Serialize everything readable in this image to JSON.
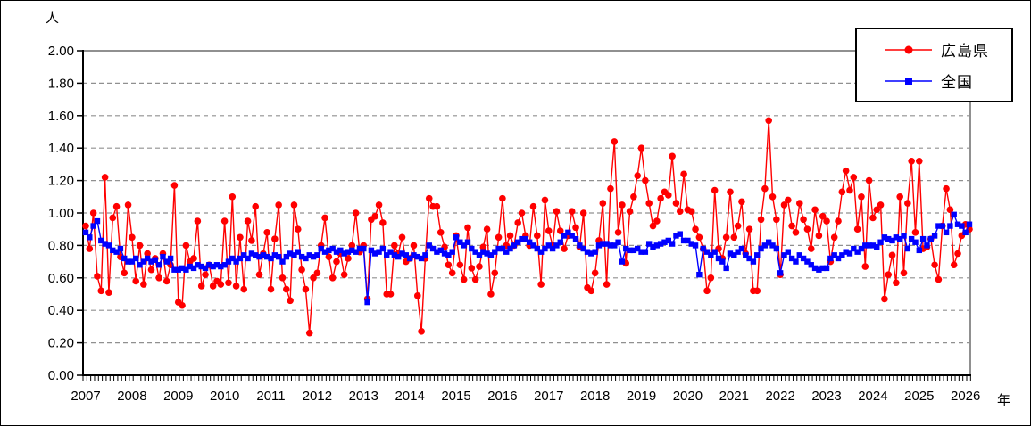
{
  "chart_data": {
    "type": "line",
    "title": "",
    "grid": "horizontal-dashed",
    "legend_position": "top-right",
    "start": "2007-01",
    "end": "2026-02",
    "points_per_year": 12,
    "y_axis": {
      "label": "人",
      "min": 0.0,
      "max": 2.0,
      "tick_step": 0.2,
      "tick_labels": [
        "0.00",
        "0.20",
        "0.40",
        "0.60",
        "0.80",
        "1.00",
        "1.20",
        "1.40",
        "1.60",
        "1.80",
        "2.00"
      ]
    },
    "x_axis": {
      "label": "年",
      "years": [
        2007,
        2008,
        2009,
        2010,
        2011,
        2012,
        2013,
        2014,
        2015,
        2016,
        2017,
        2018,
        2019,
        2020,
        2021,
        2022,
        2023,
        2024,
        2025,
        2026
      ]
    },
    "series": [
      {
        "name": "広島県",
        "color": "#ff0000",
        "marker": "circle",
        "values": [
          0.92,
          0.78,
          1.0,
          0.61,
          0.52,
          1.22,
          0.51,
          0.97,
          1.04,
          0.73,
          0.63,
          1.05,
          0.85,
          0.58,
          0.8,
          0.56,
          0.75,
          0.65,
          0.72,
          0.6,
          0.75,
          0.58,
          0.68,
          1.17,
          0.45,
          0.43,
          0.8,
          0.7,
          0.72,
          0.95,
          0.55,
          0.62,
          0.68,
          0.55,
          0.58,
          0.56,
          0.95,
          0.57,
          1.1,
          0.55,
          0.85,
          0.53,
          0.95,
          0.83,
          1.04,
          0.62,
          0.75,
          0.88,
          0.53,
          0.84,
          1.05,
          0.6,
          0.53,
          0.46,
          1.05,
          0.9,
          0.65,
          0.53,
          0.26,
          0.6,
          0.63,
          0.8,
          0.97,
          0.73,
          0.6,
          0.7,
          0.75,
          0.62,
          0.72,
          0.8,
          1.0,
          0.76,
          0.8,
          0.47,
          0.96,
          0.98,
          1.05,
          0.94,
          0.5,
          0.5,
          0.8,
          0.75,
          0.85,
          0.7,
          0.72,
          0.8,
          0.49,
          0.27,
          0.72,
          1.09,
          1.04,
          1.04,
          0.88,
          0.79,
          0.68,
          0.63,
          0.86,
          0.68,
          0.59,
          0.91,
          0.66,
          0.59,
          0.67,
          0.79,
          0.9,
          0.5,
          0.63,
          0.85,
          1.09,
          0.8,
          0.86,
          0.8,
          0.94,
          1.0,
          0.86,
          0.8,
          1.04,
          0.86,
          0.56,
          1.08,
          0.89,
          0.8,
          1.01,
          0.89,
          0.78,
          0.86,
          1.01,
          0.91,
          0.79,
          1.0,
          0.54,
          0.52,
          0.63,
          0.83,
          1.06,
          0.56,
          1.15,
          1.44,
          0.88,
          1.05,
          0.69,
          1.01,
          1.1,
          1.23,
          1.4,
          1.2,
          1.06,
          0.92,
          0.95,
          1.09,
          1.13,
          1.11,
          1.35,
          1.06,
          1.01,
          1.24,
          1.02,
          1.01,
          0.9,
          0.85,
          0.78,
          0.52,
          0.6,
          1.14,
          0.78,
          0.72,
          0.85,
          1.13,
          0.85,
          0.92,
          1.07,
          0.75,
          0.9,
          0.52,
          0.52,
          0.96,
          1.15,
          1.57,
          1.1,
          0.96,
          0.62,
          1.05,
          1.08,
          0.92,
          0.88,
          1.06,
          0.96,
          0.9,
          0.78,
          1.02,
          0.86,
          0.98,
          0.95,
          0.7,
          0.85,
          0.95,
          1.13,
          1.26,
          1.14,
          1.22,
          0.9,
          1.1,
          0.67,
          1.2,
          0.97,
          1.02,
          1.05,
          0.47,
          0.62,
          0.74,
          0.57,
          1.1,
          0.63,
          1.06,
          1.32,
          0.88,
          1.32,
          0.78,
          0.79,
          0.84,
          0.68,
          0.59,
          0.92,
          1.15,
          1.02,
          0.68,
          0.75,
          0.86,
          0.93,
          0.9
        ]
      },
      {
        "name": "全国",
        "color": "#0000ff",
        "marker": "square",
        "values": [
          0.88,
          0.85,
          0.92,
          0.95,
          0.83,
          0.81,
          0.8,
          0.77,
          0.76,
          0.78,
          0.72,
          0.7,
          0.7,
          0.72,
          0.68,
          0.7,
          0.72,
          0.7,
          0.71,
          0.68,
          0.73,
          0.7,
          0.72,
          0.65,
          0.65,
          0.66,
          0.65,
          0.67,
          0.66,
          0.68,
          0.67,
          0.66,
          0.68,
          0.67,
          0.68,
          0.67,
          0.68,
          0.7,
          0.72,
          0.7,
          0.72,
          0.74,
          0.72,
          0.75,
          0.74,
          0.73,
          0.74,
          0.73,
          0.72,
          0.74,
          0.73,
          0.7,
          0.73,
          0.75,
          0.74,
          0.76,
          0.73,
          0.72,
          0.74,
          0.73,
          0.74,
          0.78,
          0.76,
          0.77,
          0.78,
          0.76,
          0.77,
          0.75,
          0.76,
          0.77,
          0.76,
          0.78,
          0.78,
          0.45,
          0.77,
          0.75,
          0.76,
          0.78,
          0.74,
          0.76,
          0.74,
          0.73,
          0.75,
          0.74,
          0.72,
          0.74,
          0.73,
          0.72,
          0.74,
          0.8,
          0.78,
          0.76,
          0.77,
          0.75,
          0.74,
          0.76,
          0.85,
          0.82,
          0.8,
          0.82,
          0.78,
          0.76,
          0.74,
          0.76,
          0.75,
          0.74,
          0.76,
          0.78,
          0.78,
          0.76,
          0.78,
          0.8,
          0.82,
          0.84,
          0.84,
          0.82,
          0.8,
          0.78,
          0.76,
          0.78,
          0.8,
          0.78,
          0.8,
          0.82,
          0.86,
          0.88,
          0.86,
          0.84,
          0.8,
          0.78,
          0.76,
          0.75,
          0.76,
          0.8,
          0.81,
          0.81,
          0.8,
          0.8,
          0.82,
          0.7,
          0.78,
          0.77,
          0.77,
          0.78,
          0.76,
          0.76,
          0.81,
          0.79,
          0.8,
          0.81,
          0.82,
          0.83,
          0.81,
          0.86,
          0.87,
          0.83,
          0.83,
          0.81,
          0.8,
          0.62,
          0.78,
          0.76,
          0.74,
          0.76,
          0.72,
          0.7,
          0.66,
          0.75,
          0.74,
          0.76,
          0.78,
          0.74,
          0.72,
          0.7,
          0.74,
          0.78,
          0.8,
          0.82,
          0.8,
          0.78,
          0.63,
          0.74,
          0.76,
          0.72,
          0.7,
          0.74,
          0.72,
          0.7,
          0.68,
          0.66,
          0.65,
          0.66,
          0.66,
          0.72,
          0.74,
          0.72,
          0.74,
          0.76,
          0.75,
          0.78,
          0.76,
          0.78,
          0.8,
          0.8,
          0.8,
          0.79,
          0.82,
          0.85,
          0.84,
          0.83,
          0.85,
          0.84,
          0.86,
          0.78,
          0.84,
          0.82,
          0.77,
          0.84,
          0.8,
          0.84,
          0.86,
          0.92,
          0.92,
          0.88,
          0.92,
          0.99,
          0.93,
          0.92,
          0.88,
          0.93
        ]
      }
    ],
    "style": {
      "grid_color": "#909090",
      "frame_color": "#909090",
      "axis_color": "#000000",
      "background": "#ffffff"
    }
  },
  "legend": {
    "items": [
      {
        "label": "広島県",
        "color": "#ff0000",
        "marker": "circle"
      },
      {
        "label": "全国",
        "color": "#0000ff",
        "marker": "square"
      }
    ]
  }
}
